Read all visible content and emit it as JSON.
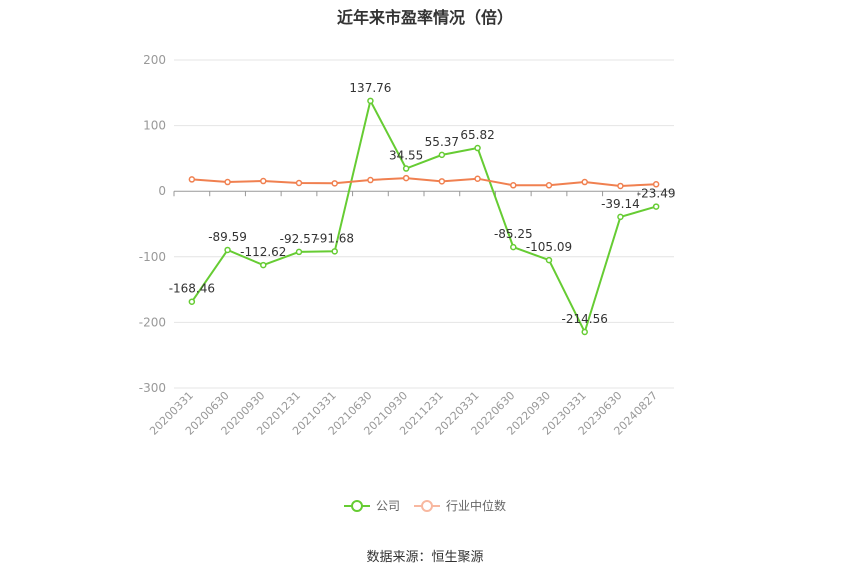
{
  "chart_data": {
    "type": "line",
    "title": "近年来市盈率情况（倍）",
    "categories": [
      "20200331",
      "20200630",
      "20200930",
      "20201231",
      "20210331",
      "20210630",
      "20210930",
      "20211231",
      "20220331",
      "20220630",
      "20220930",
      "20230331",
      "20230630",
      "20240827"
    ],
    "series": [
      {
        "name": "公司",
        "color": "#66cc33",
        "values": [
          -168.46,
          -89.59,
          -112.62,
          -92.57,
          -91.68,
          137.76,
          34.55,
          55.37,
          65.82,
          -85.25,
          -105.09,
          -214.56,
          -39.14,
          -23.49
        ],
        "labels": [
          "-168.46",
          "-89.59",
          "-112.62",
          "-92.57",
          "-91.68",
          "137.76",
          "34.55",
          "55.37",
          "65.82",
          "-85.25",
          "-105.09",
          "-214.56",
          "-39.14",
          "-23.49"
        ]
      },
      {
        "name": "行业中位数",
        "color": "#f08050",
        "values": [
          18,
          14,
          15.5,
          12.5,
          12,
          17,
          20,
          15,
          19,
          9,
          9,
          14,
          8,
          10.5
        ]
      }
    ],
    "yticks": [
      200,
      100,
      0,
      -100,
      -200,
      -300
    ],
    "ylim": [
      -300,
      200
    ],
    "grid": true,
    "legend_position": "bottom"
  },
  "source": "数据来源：恒生聚源"
}
